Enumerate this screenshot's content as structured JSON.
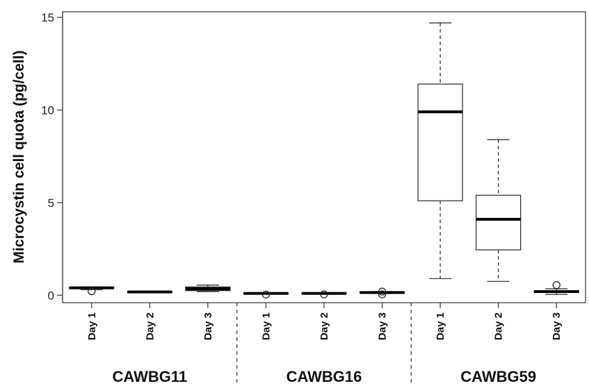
{
  "chart_data": {
    "type": "box",
    "ylabel": "Microcystin cell quota (pg/cell)",
    "xlabel": "",
    "ylim": [
      -0.4,
      15.3
    ],
    "yticks": [
      0,
      5,
      10,
      15
    ],
    "grid": false,
    "groups": [
      {
        "name": "CAWBG11",
        "categories": [
          "Day 1",
          "Day 2",
          "Day 3"
        ]
      },
      {
        "name": "CAWBG16",
        "categories": [
          "Day 1",
          "Day 2",
          "Day 3"
        ]
      },
      {
        "name": "CAWBG59",
        "categories": [
          "Day 1",
          "Day 2",
          "Day 3"
        ]
      }
    ],
    "boxes": [
      {
        "group": "CAWBG11",
        "label": "Day 1",
        "min": 0.3,
        "q1": 0.36,
        "median": 0.4,
        "q3": 0.43,
        "max": 0.45,
        "outliers": [
          0.22
        ]
      },
      {
        "group": "CAWBG11",
        "label": "Day 2",
        "min": 0.14,
        "q1": 0.16,
        "median": 0.18,
        "q3": 0.2,
        "max": 0.22,
        "outliers": []
      },
      {
        "group": "CAWBG11",
        "label": "Day 3",
        "min": 0.2,
        "q1": 0.25,
        "median": 0.35,
        "q3": 0.45,
        "max": 0.55,
        "outliers": []
      },
      {
        "group": "CAWBG16",
        "label": "Day 1",
        "min": 0.06,
        "q1": 0.08,
        "median": 0.1,
        "q3": 0.12,
        "max": 0.14,
        "outliers": [
          0.04
        ]
      },
      {
        "group": "CAWBG16",
        "label": "Day 2",
        "min": 0.06,
        "q1": 0.08,
        "median": 0.1,
        "q3": 0.12,
        "max": 0.14,
        "outliers": [
          0.05
        ]
      },
      {
        "group": "CAWBG16",
        "label": "Day 3",
        "min": 0.1,
        "q1": 0.13,
        "median": 0.15,
        "q3": 0.18,
        "max": 0.2,
        "outliers": [
          0.2,
          0.05
        ]
      },
      {
        "group": "CAWBG59",
        "label": "Day 1",
        "min": 0.9,
        "q1": 5.1,
        "median": 9.9,
        "q3": 11.4,
        "max": 14.7,
        "outliers": []
      },
      {
        "group": "CAWBG59",
        "label": "Day 2",
        "min": 0.75,
        "q1": 2.45,
        "median": 4.1,
        "q3": 5.4,
        "max": 8.4,
        "outliers": []
      },
      {
        "group": "CAWBG59",
        "label": "Day 3",
        "min": 0.05,
        "q1": 0.15,
        "median": 0.2,
        "q3": 0.25,
        "max": 0.35,
        "outliers": [
          0.55
        ]
      }
    ]
  }
}
